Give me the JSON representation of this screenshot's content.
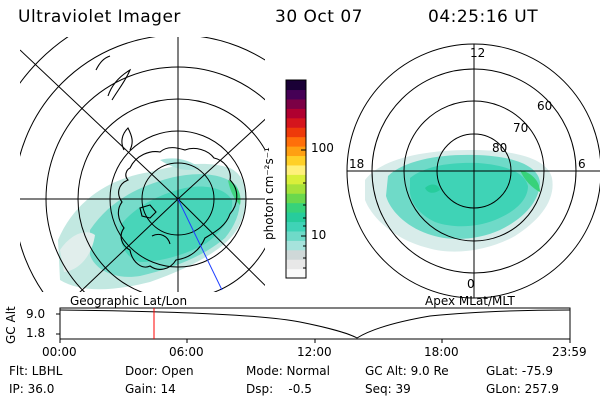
{
  "header": {
    "title": "Ultraviolet Imager",
    "date": "30 Oct 07",
    "time": "04:25:16 UT"
  },
  "left_map": {
    "caption": "Geographic Lat/Lon"
  },
  "right_map": {
    "caption": "Apex MLat/MLT",
    "mlt_labels": [
      "12",
      "18",
      "6",
      "0"
    ],
    "lat_labels": [
      "60",
      "70",
      "80"
    ]
  },
  "colorbar": {
    "unit_label": "photon cm⁻²s⁻¹",
    "tick_labels": [
      "100",
      "10"
    ],
    "colors": [
      "#fafafa",
      "#e8e8e8",
      "#cfd8d8",
      "#a6e3dc",
      "#6fdac8",
      "#3fd3b6",
      "#27cc9c",
      "#37d27a",
      "#6ad84d",
      "#a6e23a",
      "#d9ef3a",
      "#fff07a",
      "#ffd028",
      "#ffa012",
      "#ff6f0a",
      "#ee3a0a",
      "#d5151d",
      "#b00030",
      "#7b0045",
      "#450055",
      "#1a0036"
    ]
  },
  "timeline": {
    "axis_label": "GC Alt",
    "y_ticks": [
      "9.0",
      "1.8"
    ],
    "x_ticks": [
      "00:00",
      "06:00",
      "12:00",
      "18:00",
      "23:59"
    ],
    "marker_color": "#ff0000"
  },
  "info": {
    "flt": "Flt: LBHL",
    "ip": "IP: 36.0",
    "door": "Door: Open",
    "gain": "Gain: 14",
    "mode": "Mode: Normal",
    "dsp": "Dsp:    -0.5",
    "gcalt": "GC Alt: 9.0 Re",
    "seq": "Seq: 39",
    "glat": "GLat: -75.9",
    "glon": "GLon: 257.9"
  }
}
